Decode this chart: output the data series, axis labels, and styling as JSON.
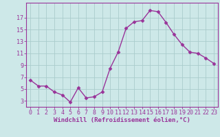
{
  "x": [
    0,
    1,
    2,
    3,
    4,
    5,
    6,
    7,
    8,
    9,
    10,
    11,
    12,
    13,
    14,
    15,
    16,
    17,
    18,
    19,
    20,
    21,
    22,
    23
  ],
  "y": [
    6.5,
    5.5,
    5.5,
    4.5,
    4.0,
    2.8,
    5.2,
    3.5,
    3.7,
    4.5,
    8.5,
    11.2,
    15.2,
    16.3,
    16.5,
    18.2,
    18.0,
    16.2,
    14.2,
    12.5,
    11.2,
    11.0,
    10.2,
    9.3
  ],
  "line_color": "#993399",
  "marker": "D",
  "marker_size": 2.5,
  "bg_color": "#cde8e8",
  "grid_color": "#aacccc",
  "axes_color": "#993399",
  "xlabel": "Windchill (Refroidissement éolien,°C)",
  "xlabel_fontsize": 6.5,
  "yticks": [
    3,
    5,
    7,
    9,
    11,
    13,
    15,
    17
  ],
  "xticks": [
    0,
    1,
    2,
    3,
    4,
    5,
    6,
    7,
    8,
    9,
    10,
    11,
    12,
    13,
    14,
    15,
    16,
    17,
    18,
    19,
    20,
    21,
    22,
    23
  ],
  "ylim": [
    2.0,
    19.5
  ],
  "xlim": [
    -0.5,
    23.5
  ],
  "tick_fontsize": 6.0,
  "linewidth": 1.0
}
